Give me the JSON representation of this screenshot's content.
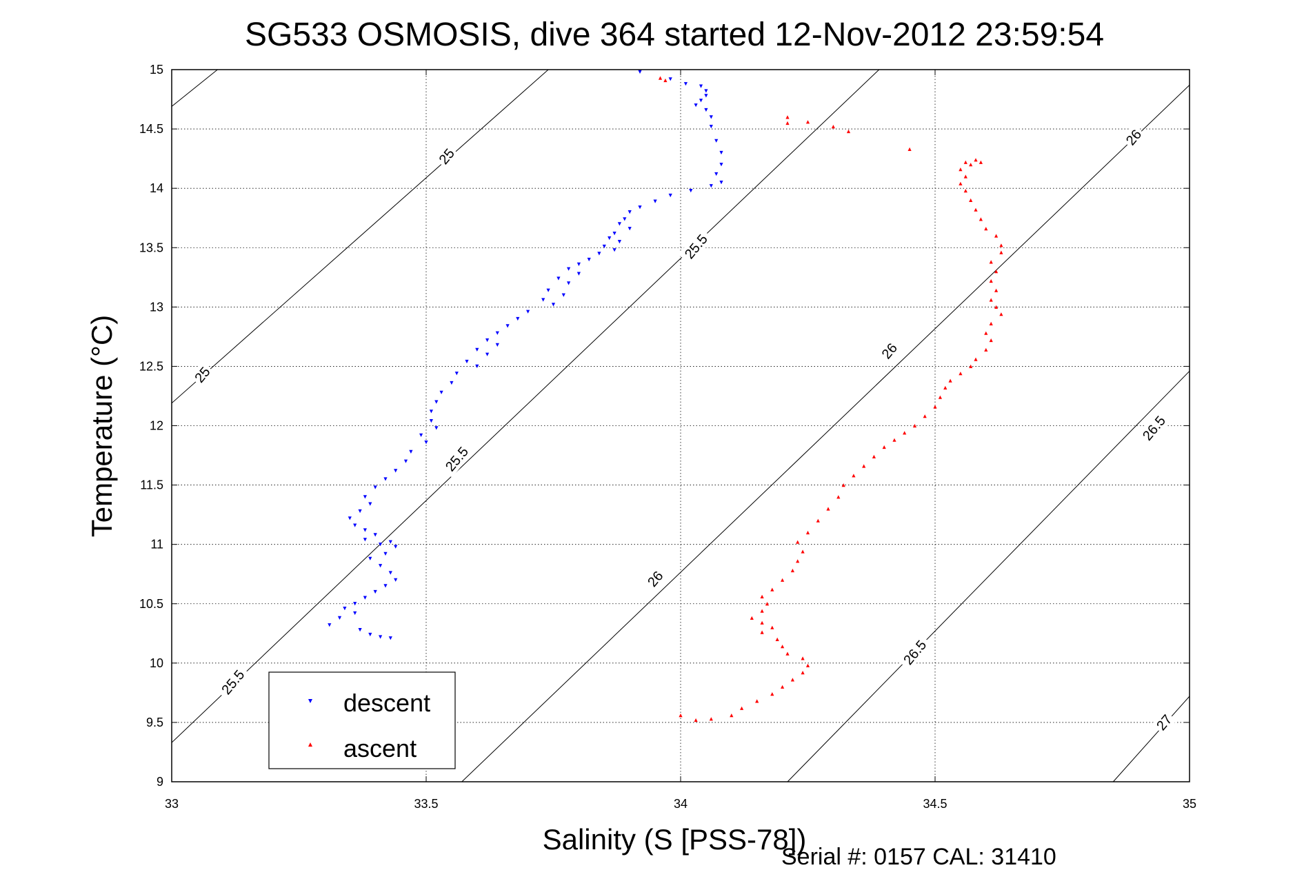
{
  "chart_data": {
    "type": "scatter",
    "title": "SG533 OSMOSIS, dive 364 started 12-Nov-2012 23:59:54",
    "xlabel": "Salinity (S [PSS-78])",
    "ylabel": "Temperature (°C)",
    "xlim": [
      33,
      35
    ],
    "ylim": [
      9,
      15
    ],
    "xticks": [
      "33",
      "33.5",
      "34",
      "34.5",
      "35"
    ],
    "yticks": [
      "9",
      "9.5",
      "10",
      "10.5",
      "11",
      "11.5",
      "12",
      "12.5",
      "13",
      "13.5",
      "14",
      "14.5",
      "15"
    ],
    "grid": true,
    "legend_position": "bottom-left",
    "footer": "Serial #: 0157  CAL: 31410",
    "colors": {
      "descent": "#0000ff",
      "ascent": "#ff0000",
      "contour": "#000000"
    },
    "density_contours": [
      {
        "label": "25",
        "points": [
          [
            33.0,
            14.69
          ],
          [
            33.09,
            15.0
          ]
        ]
      },
      {
        "label": "25",
        "points": [
          [
            33.0,
            12.19
          ],
          [
            33.74,
            15.0
          ]
        ]
      },
      {
        "label": "25.5",
        "points": [
          [
            33.0,
            9.33
          ],
          [
            34.39,
            15.0
          ]
        ]
      },
      {
        "label": "26",
        "points": [
          [
            33.57,
            9.0
          ],
          [
            35.0,
            14.87
          ]
        ]
      },
      {
        "label": "26.5",
        "points": [
          [
            34.21,
            9.0
          ],
          [
            35.0,
            12.46
          ]
        ]
      },
      {
        "label": "27",
        "points": [
          [
            34.85,
            9.0
          ],
          [
            35.0,
            9.72
          ]
        ]
      }
    ],
    "contour_labels": [
      {
        "text": "25",
        "x": 33.06,
        "y": 12.43
      },
      {
        "text": "25",
        "x": 33.54,
        "y": 14.27
      },
      {
        "text": "25.5",
        "x": 33.12,
        "y": 9.84
      },
      {
        "text": "25.5",
        "x": 33.56,
        "y": 11.72
      },
      {
        "text": "25.5",
        "x": 34.03,
        "y": 13.51
      },
      {
        "text": "26",
        "x": 33.95,
        "y": 10.71
      },
      {
        "text": "26",
        "x": 34.41,
        "y": 12.63
      },
      {
        "text": "26",
        "x": 34.89,
        "y": 14.43
      },
      {
        "text": "26.5",
        "x": 34.46,
        "y": 10.09
      },
      {
        "text": "26.5",
        "x": 34.93,
        "y": 11.98
      },
      {
        "text": "27",
        "x": 34.95,
        "y": 9.5
      }
    ],
    "series": [
      {
        "name": "descent",
        "marker": "triangle-down",
        "values": [
          [
            33.92,
            14.98
          ],
          [
            33.98,
            14.92
          ],
          [
            34.01,
            14.88
          ],
          [
            34.04,
            14.86
          ],
          [
            34.05,
            14.82
          ],
          [
            34.05,
            14.78
          ],
          [
            34.04,
            14.74
          ],
          [
            34.03,
            14.7
          ],
          [
            34.05,
            14.66
          ],
          [
            34.06,
            14.6
          ],
          [
            34.06,
            14.52
          ],
          [
            34.07,
            14.4
          ],
          [
            34.08,
            14.3
          ],
          [
            34.08,
            14.2
          ],
          [
            34.07,
            14.12
          ],
          [
            34.08,
            14.05
          ],
          [
            34.06,
            14.02
          ],
          [
            34.02,
            13.98
          ],
          [
            33.98,
            13.94
          ],
          [
            33.95,
            13.89
          ],
          [
            33.92,
            13.84
          ],
          [
            33.9,
            13.8
          ],
          [
            33.89,
            13.74
          ],
          [
            33.88,
            13.7
          ],
          [
            33.9,
            13.66
          ],
          [
            33.87,
            13.62
          ],
          [
            33.86,
            13.58
          ],
          [
            33.88,
            13.55
          ],
          [
            33.85,
            13.51
          ],
          [
            33.87,
            13.48
          ],
          [
            33.84,
            13.45
          ],
          [
            33.82,
            13.4
          ],
          [
            33.8,
            13.36
          ],
          [
            33.78,
            13.32
          ],
          [
            33.8,
            13.28
          ],
          [
            33.76,
            13.24
          ],
          [
            33.78,
            13.2
          ],
          [
            33.74,
            13.14
          ],
          [
            33.77,
            13.1
          ],
          [
            33.73,
            13.06
          ],
          [
            33.75,
            13.02
          ],
          [
            33.7,
            12.96
          ],
          [
            33.68,
            12.9
          ],
          [
            33.66,
            12.84
          ],
          [
            33.64,
            12.78
          ],
          [
            33.62,
            12.72
          ],
          [
            33.64,
            12.68
          ],
          [
            33.6,
            12.64
          ],
          [
            33.62,
            12.6
          ],
          [
            33.58,
            12.54
          ],
          [
            33.6,
            12.5
          ],
          [
            33.56,
            12.44
          ],
          [
            33.55,
            12.36
          ],
          [
            33.53,
            12.28
          ],
          [
            33.52,
            12.2
          ],
          [
            33.51,
            12.12
          ],
          [
            33.51,
            12.04
          ],
          [
            33.52,
            11.98
          ],
          [
            33.49,
            11.92
          ],
          [
            33.5,
            11.86
          ],
          [
            33.47,
            11.78
          ],
          [
            33.46,
            11.7
          ],
          [
            33.44,
            11.62
          ],
          [
            33.42,
            11.55
          ],
          [
            33.4,
            11.48
          ],
          [
            33.38,
            11.4
          ],
          [
            33.39,
            11.34
          ],
          [
            33.37,
            11.28
          ],
          [
            33.35,
            11.22
          ],
          [
            33.36,
            11.16
          ],
          [
            33.38,
            11.12
          ],
          [
            33.4,
            11.08
          ],
          [
            33.38,
            11.04
          ],
          [
            33.41,
            11.0
          ],
          [
            33.43,
            11.02
          ],
          [
            33.44,
            10.98
          ],
          [
            33.42,
            10.92
          ],
          [
            33.39,
            10.88
          ],
          [
            33.41,
            10.82
          ],
          [
            33.43,
            10.76
          ],
          [
            33.44,
            10.7
          ],
          [
            33.42,
            10.65
          ],
          [
            33.4,
            10.6
          ],
          [
            33.38,
            10.55
          ],
          [
            33.36,
            10.5
          ],
          [
            33.34,
            10.46
          ],
          [
            33.36,
            10.42
          ],
          [
            33.33,
            10.38
          ],
          [
            33.31,
            10.32
          ],
          [
            33.37,
            10.28
          ],
          [
            33.39,
            10.24
          ],
          [
            33.41,
            10.22
          ],
          [
            33.43,
            10.21
          ]
        ]
      },
      {
        "name": "ascent",
        "marker": "triangle-up",
        "values": [
          [
            34.0,
            9.56
          ],
          [
            34.03,
            9.52
          ],
          [
            34.06,
            9.53
          ],
          [
            34.1,
            9.56
          ],
          [
            34.12,
            9.62
          ],
          [
            34.15,
            9.68
          ],
          [
            34.18,
            9.74
          ],
          [
            34.2,
            9.8
          ],
          [
            34.22,
            9.86
          ],
          [
            34.24,
            9.92
          ],
          [
            34.25,
            9.98
          ],
          [
            34.24,
            10.04
          ],
          [
            34.21,
            10.08
          ],
          [
            34.2,
            10.14
          ],
          [
            34.19,
            10.2
          ],
          [
            34.16,
            10.26
          ],
          [
            34.18,
            10.3
          ],
          [
            34.16,
            10.34
          ],
          [
            34.14,
            10.38
          ],
          [
            34.16,
            10.44
          ],
          [
            34.17,
            10.5
          ],
          [
            34.16,
            10.56
          ],
          [
            34.18,
            10.62
          ],
          [
            34.2,
            10.7
          ],
          [
            34.22,
            10.78
          ],
          [
            34.23,
            10.86
          ],
          [
            34.24,
            10.94
          ],
          [
            34.23,
            11.02
          ],
          [
            34.25,
            11.1
          ],
          [
            34.27,
            11.2
          ],
          [
            34.29,
            11.3
          ],
          [
            34.31,
            11.4
          ],
          [
            34.32,
            11.5
          ],
          [
            34.34,
            11.58
          ],
          [
            34.36,
            11.66
          ],
          [
            34.38,
            11.74
          ],
          [
            34.4,
            11.82
          ],
          [
            34.42,
            11.88
          ],
          [
            34.44,
            11.94
          ],
          [
            34.46,
            12.0
          ],
          [
            34.48,
            12.08
          ],
          [
            34.5,
            12.16
          ],
          [
            34.51,
            12.24
          ],
          [
            34.52,
            12.32
          ],
          [
            34.53,
            12.38
          ],
          [
            34.55,
            12.44
          ],
          [
            34.57,
            12.5
          ],
          [
            34.58,
            12.56
          ],
          [
            34.6,
            12.64
          ],
          [
            34.61,
            12.72
          ],
          [
            34.6,
            12.78
          ],
          [
            34.61,
            12.86
          ],
          [
            34.63,
            12.94
          ],
          [
            34.62,
            13.0
          ],
          [
            34.61,
            13.06
          ],
          [
            34.62,
            13.14
          ],
          [
            34.61,
            13.22
          ],
          [
            34.62,
            13.3
          ],
          [
            34.61,
            13.38
          ],
          [
            34.63,
            13.46
          ],
          [
            34.63,
            13.52
          ],
          [
            34.62,
            13.6
          ],
          [
            34.6,
            13.66
          ],
          [
            34.59,
            13.74
          ],
          [
            34.58,
            13.82
          ],
          [
            34.57,
            13.9
          ],
          [
            34.56,
            13.98
          ],
          [
            34.55,
            14.04
          ],
          [
            34.56,
            14.1
          ],
          [
            34.55,
            14.16
          ],
          [
            34.57,
            14.2
          ],
          [
            34.59,
            14.22
          ],
          [
            34.58,
            14.24
          ],
          [
            34.56,
            14.22
          ],
          [
            34.45,
            14.33
          ],
          [
            34.3,
            14.52
          ],
          [
            34.25,
            14.56
          ],
          [
            34.21,
            14.55
          ],
          [
            34.33,
            14.48
          ],
          [
            34.21,
            14.6
          ],
          [
            33.97,
            14.91
          ],
          [
            33.96,
            14.93
          ]
        ]
      }
    ]
  },
  "legend": {
    "items": [
      {
        "label": "descent"
      },
      {
        "label": "ascent"
      }
    ]
  }
}
